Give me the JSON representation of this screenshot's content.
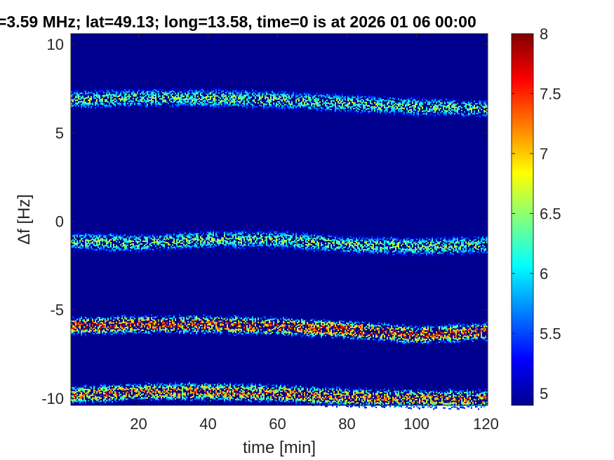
{
  "chart_data": {
    "type": "heatmap",
    "title": "=3.59 MHz;  lat=49.13; long=13.58, time=0 is at 2026 01 06 00:00",
    "xlabel": "time [min]",
    "ylabel": "Δf [Hz]",
    "xlim": [
      0.5,
      120.5
    ],
    "ylim": [
      -10.4,
      10.6
    ],
    "xticks": [
      20,
      40,
      60,
      80,
      100,
      120
    ],
    "xtick_labels": [
      "20",
      "40",
      "60",
      "80",
      "100",
      "120"
    ],
    "yticks": [
      -10,
      -5,
      0,
      5,
      10
    ],
    "ytick_labels": [
      "-10",
      "-5",
      "0",
      "5",
      "10"
    ],
    "clim": [
      4.9,
      8.0
    ],
    "colormap": "jet",
    "colorbar_ticks": [
      5,
      5.5,
      6,
      6.5,
      7,
      7.5,
      8
    ],
    "colorbar_tick_labels": [
      "5",
      "5.5",
      "6",
      "6.5",
      "7",
      "7.5",
      "8"
    ],
    "background_color": "#00008f",
    "bands": [
      {
        "center_hz": [
          6.9,
          7.0,
          7.0,
          6.9,
          6.7,
          6.5,
          6.4
        ],
        "at_minutes": [
          0,
          20,
          40,
          60,
          80,
          100,
          120
        ],
        "peak": 6.8
      },
      {
        "center_hz": [
          -1.1,
          -1.2,
          -1.0,
          -1.0,
          -1.3,
          -1.4,
          -1.3
        ],
        "at_minutes": [
          0,
          20,
          40,
          60,
          80,
          100,
          120
        ],
        "peak": 6.8
      },
      {
        "center_hz": [
          -5.9,
          -5.8,
          -5.8,
          -5.9,
          -6.1,
          -6.4,
          -6.2
        ],
        "at_minutes": [
          0,
          20,
          40,
          60,
          80,
          100,
          120
        ],
        "peak": 7.9
      },
      {
        "center_hz": [
          -9.8,
          -9.6,
          -9.6,
          -9.7,
          -9.9,
          -10.0,
          -10.0
        ],
        "at_minutes": [
          0,
          20,
          40,
          60,
          80,
          100,
          120
        ],
        "peak": 7.6
      }
    ]
  }
}
